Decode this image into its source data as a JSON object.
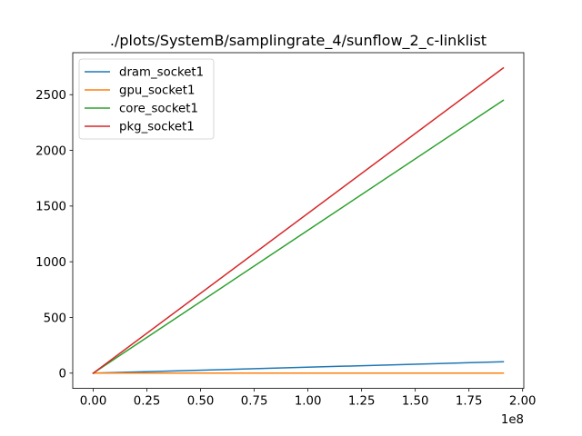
{
  "chart_data": {
    "type": "line",
    "title": "./plots/SystemB/samplingrate_4/sunflow_2_c-linklist",
    "xlabel": "",
    "ylabel": "",
    "x_offset_label": "1e8",
    "xlim": [
      -0.0955,
      2.0055
    ],
    "ylim": [
      -137,
      2877
    ],
    "x_ticks": [
      0.0,
      0.25,
      0.5,
      0.75,
      1.0,
      1.25,
      1.5,
      1.75,
      2.0
    ],
    "x_tick_labels": [
      "0.00",
      "0.25",
      "0.50",
      "0.75",
      "1.00",
      "1.25",
      "1.50",
      "1.75",
      "2.00"
    ],
    "y_ticks": [
      0,
      500,
      1000,
      1500,
      2000,
      2500
    ],
    "y_tick_labels": [
      "0",
      "500",
      "1000",
      "1500",
      "2000",
      "2500"
    ],
    "grid": false,
    "legend_position": "top-left",
    "series": [
      {
        "name": "dram_socket1",
        "color": "#1f77b4",
        "x": [
          0.0,
          1.91
        ],
        "y": [
          0,
          102
        ]
      },
      {
        "name": "gpu_socket1",
        "color": "#ff7f0e",
        "x": [
          0.0,
          1.91
        ],
        "y": [
          0,
          0
        ]
      },
      {
        "name": "core_socket1",
        "color": "#2ca02c",
        "x": [
          0.0,
          1.91
        ],
        "y": [
          0,
          2450
        ]
      },
      {
        "name": "pkg_socket1",
        "color": "#d62728",
        "x": [
          0.0,
          1.91
        ],
        "y": [
          0,
          2740
        ]
      }
    ]
  }
}
